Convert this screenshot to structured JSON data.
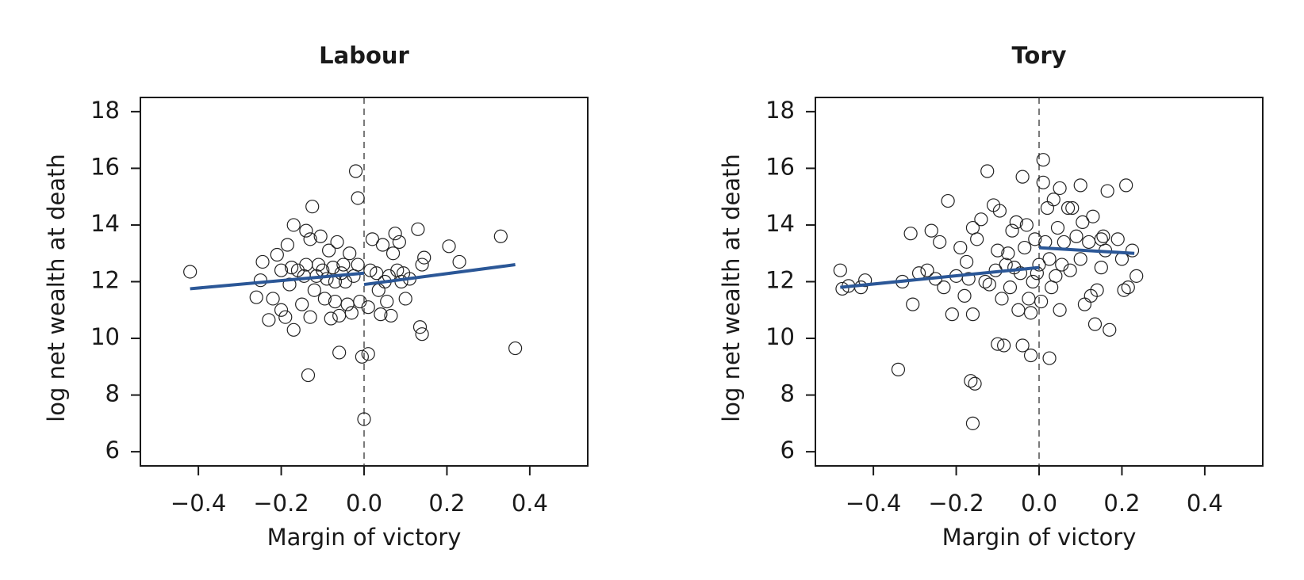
{
  "chart_data": [
    {
      "type": "scatter",
      "title": "Labour",
      "x_label": "Margin of victory",
      "y_label": "log net wealth at death",
      "xlim": [
        -0.54,
        0.54
      ],
      "ylim": [
        5.5,
        18.5
      ],
      "xticks": [
        {
          "value": -0.4,
          "label": "−0.4"
        },
        {
          "value": -0.2,
          "label": "−0.2"
        },
        {
          "value": 0,
          "label": "0.0"
        },
        {
          "value": 0.2,
          "label": "0.2"
        },
        {
          "value": 0.4,
          "label": "0.4"
        }
      ],
      "yticks": [
        6,
        8,
        10,
        12,
        14,
        16,
        18
      ],
      "vline": 0,
      "series": [
        {
          "type": "scatter",
          "color": "#222222",
          "x": [
            -0.42,
            -0.26,
            -0.25,
            -0.245,
            -0.23,
            -0.22,
            -0.21,
            -0.2,
            -0.2,
            -0.19,
            -0.185,
            -0.18,
            -0.175,
            -0.17,
            -0.17,
            -0.16,
            -0.15,
            -0.145,
            -0.14,
            -0.14,
            -0.135,
            -0.13,
            -0.13,
            -0.125,
            -0.12,
            -0.115,
            -0.11,
            -0.105,
            -0.1,
            -0.095,
            -0.09,
            -0.085,
            -0.08,
            -0.075,
            -0.07,
            -0.07,
            -0.065,
            -0.06,
            -0.06,
            -0.055,
            -0.05,
            -0.045,
            -0.04,
            -0.035,
            -0.03,
            -0.025,
            -0.02,
            -0.015,
            -0.015,
            -0.01,
            -0.005,
            0.0,
            0.01,
            0.01,
            0.015,
            0.02,
            0.03,
            0.035,
            0.04,
            0.045,
            0.05,
            0.055,
            0.06,
            0.065,
            0.07,
            0.075,
            0.08,
            0.085,
            0.09,
            0.095,
            0.1,
            0.11,
            0.13,
            0.135,
            0.14,
            0.14,
            0.145,
            0.205,
            0.23,
            0.33,
            0.365
          ],
          "values": [
            12.35,
            11.45,
            12.05,
            12.7,
            10.65,
            11.4,
            12.95,
            12.4,
            11.0,
            10.75,
            13.3,
            11.9,
            12.5,
            14.0,
            10.3,
            12.4,
            11.2,
            12.2,
            13.8,
            12.6,
            8.7,
            10.75,
            13.5,
            14.65,
            11.7,
            12.2,
            12.6,
            13.6,
            12.4,
            11.4,
            12.1,
            13.1,
            10.7,
            12.5,
            11.3,
            12.0,
            13.4,
            9.5,
            10.8,
            12.3,
            12.6,
            12.0,
            11.2,
            13.0,
            10.9,
            12.2,
            15.9,
            12.6,
            14.95,
            11.3,
            9.35,
            7.15,
            9.45,
            11.1,
            12.4,
            13.5,
            12.3,
            11.7,
            10.85,
            13.3,
            12.0,
            11.3,
            12.2,
            10.8,
            13.0,
            13.7,
            12.4,
            13.4,
            12.0,
            12.3,
            11.4,
            12.1,
            13.85,
            10.4,
            10.15,
            12.6,
            12.85,
            13.25,
            12.7,
            13.6,
            9.65
          ]
        },
        {
          "type": "line",
          "color": "#2b5797",
          "x": [
            -0.42,
            0
          ],
          "values": [
            11.75,
            12.3
          ]
        },
        {
          "type": "line",
          "color": "#2b5797",
          "x": [
            0,
            0.365
          ],
          "values": [
            11.9,
            12.6
          ]
        }
      ]
    },
    {
      "type": "scatter",
      "title": "Tory",
      "x_label": "Margin of victory",
      "y_label": "log net wealth at death",
      "xlim": [
        -0.54,
        0.54
      ],
      "ylim": [
        5.5,
        18.5
      ],
      "xticks": [
        {
          "value": -0.4,
          "label": "−0.4"
        },
        {
          "value": -0.2,
          "label": "−0.2"
        },
        {
          "value": 0,
          "label": "0.0"
        },
        {
          "value": 0.2,
          "label": "0.2"
        },
        {
          "value": 0.4,
          "label": "0.4"
        }
      ],
      "yticks": [
        6,
        8,
        10,
        12,
        14,
        16,
        18
      ],
      "vline": 0,
      "series": [
        {
          "type": "scatter",
          "color": "#222222",
          "x": [
            -0.48,
            -0.475,
            -0.46,
            -0.43,
            -0.42,
            -0.34,
            -0.33,
            -0.31,
            -0.305,
            -0.29,
            -0.27,
            -0.26,
            -0.25,
            -0.24,
            -0.23,
            -0.22,
            -0.21,
            -0.2,
            -0.19,
            -0.18,
            -0.175,
            -0.17,
            -0.165,
            -0.16,
            -0.16,
            -0.155,
            -0.15,
            -0.14,
            -0.13,
            -0.125,
            -0.12,
            -0.11,
            -0.105,
            -0.1,
            -0.1,
            -0.095,
            -0.09,
            -0.085,
            -0.08,
            -0.075,
            -0.07,
            -0.065,
            -0.06,
            -0.055,
            -0.05,
            -0.045,
            -0.04,
            -0.04,
            -0.035,
            -0.03,
            -0.025,
            -0.02,
            -0.015,
            -0.01,
            -0.005,
            0.0,
            0.005,
            0.01,
            0.01,
            0.015,
            0.02,
            0.025,
            0.025,
            0.03,
            0.035,
            0.04,
            0.045,
            0.05,
            0.05,
            0.055,
            0.06,
            0.07,
            0.075,
            0.08,
            0.09,
            0.1,
            0.1,
            0.105,
            0.11,
            0.12,
            0.125,
            0.13,
            0.135,
            0.14,
            0.15,
            0.15,
            0.155,
            0.16,
            0.165,
            0.17,
            0.19,
            0.2,
            0.205,
            0.21,
            0.215,
            0.225,
            0.235,
            -0.02,
            -0.16
          ],
          "values": [
            12.4,
            11.75,
            11.85,
            11.8,
            12.05,
            8.9,
            12.0,
            13.7,
            11.2,
            12.3,
            12.4,
            13.8,
            12.1,
            13.4,
            11.8,
            14.85,
            10.85,
            12.2,
            13.2,
            11.5,
            12.7,
            12.1,
            8.5,
            10.85,
            7.0,
            8.4,
            13.5,
            14.2,
            12.0,
            15.9,
            11.9,
            14.7,
            12.4,
            9.8,
            13.1,
            14.5,
            11.4,
            9.75,
            12.6,
            13.0,
            11.8,
            13.8,
            12.5,
            14.1,
            11.0,
            12.3,
            15.7,
            9.75,
            13.2,
            14.0,
            11.4,
            10.9,
            12.0,
            13.5,
            12.3,
            12.6,
            11.3,
            15.5,
            16.3,
            13.4,
            14.6,
            9.3,
            12.8,
            11.8,
            14.9,
            12.2,
            13.9,
            15.3,
            11.0,
            12.6,
            13.4,
            14.6,
            12.4,
            14.6,
            13.6,
            15.4,
            12.8,
            14.1,
            11.2,
            13.4,
            11.5,
            14.3,
            10.5,
            11.7,
            12.5,
            13.5,
            13.6,
            13.1,
            15.2,
            10.3,
            13.5,
            12.8,
            11.7,
            15.4,
            11.8,
            13.1,
            12.2,
            9.4,
            13.9
          ]
        },
        {
          "type": "line",
          "color": "#2b5797",
          "x": [
            -0.48,
            0
          ],
          "values": [
            11.8,
            12.5
          ]
        },
        {
          "type": "line",
          "color": "#2b5797",
          "x": [
            0,
            0.23
          ],
          "values": [
            13.2,
            13.0
          ]
        }
      ]
    }
  ]
}
